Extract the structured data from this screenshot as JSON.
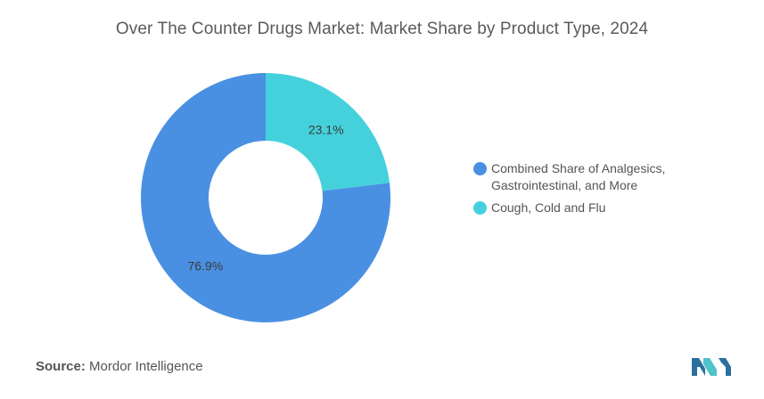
{
  "chart_data": {
    "type": "pie",
    "variant": "donut",
    "title": "Over The Counter Drugs Market: Market Share by Product Type, 2024",
    "slices": [
      {
        "label": "Cough, Cold and Flu",
        "value": 23.1,
        "display": "23.1%",
        "color": "#45d1dc"
      },
      {
        "label": "Combined Share of Analgesics, Gastrointestinal, and More",
        "value": 76.9,
        "display": "76.9%",
        "color": "#4a90e2"
      }
    ],
    "legend_position": "right",
    "legend": [
      {
        "label": "Combined Share of Analgesics, Gastrointestinal, and More",
        "color": "#4a90e2"
      },
      {
        "label": "Cough, Cold and Flu",
        "color": "#45d1dc"
      }
    ]
  },
  "source": {
    "key": "Source:",
    "value": "Mordor Intelligence"
  },
  "logo": {
    "icon": "mordor-intelligence-logo-icon",
    "colors": [
      "#2b6fa0",
      "#4fc3c9"
    ]
  }
}
